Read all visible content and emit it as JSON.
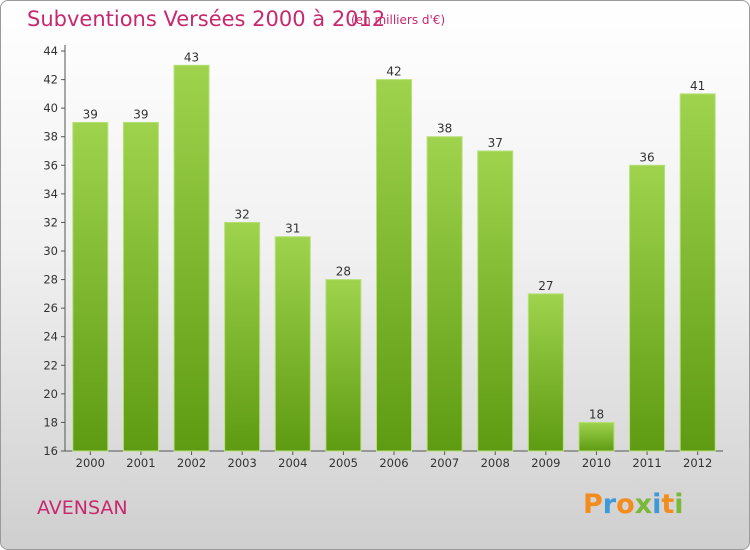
{
  "title": "Subventions Versées 2000 à 2012",
  "unit": "(en milliers d'€)",
  "commune": "AVENSAN",
  "logo": {
    "letters": [
      "P",
      "r",
      "o",
      "x",
      "i",
      "t",
      "i"
    ],
    "colors": [
      "#f28c1e",
      "#3d9ad6",
      "#f28c1e",
      "#7ab83a",
      "#3d9ad6",
      "#f28c1e",
      "#7ab83a"
    ]
  },
  "colors": {
    "bar_top": "#9fd34e",
    "bar_bottom": "#5e9b12",
    "accent": "#c8286e"
  },
  "chart_data": {
    "type": "bar",
    "categories": [
      "2000",
      "2001",
      "2002",
      "2003",
      "2004",
      "2005",
      "2006",
      "2007",
      "2008",
      "2009",
      "2010",
      "2011",
      "2012"
    ],
    "values": [
      39,
      39,
      43,
      32,
      31,
      28,
      42,
      38,
      37,
      27,
      18,
      36,
      41
    ],
    "ylim": [
      16,
      44
    ],
    "yticks": [
      16,
      18,
      20,
      22,
      24,
      26,
      28,
      30,
      32,
      34,
      36,
      38,
      40,
      42,
      44
    ],
    "grid": false,
    "data_labels": true
  }
}
